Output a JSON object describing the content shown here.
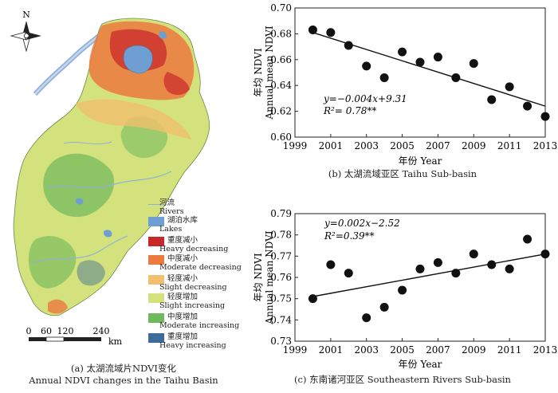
{
  "map": {
    "north_label": "N",
    "caption_cn": "(a) 太湖流域片NDVI变化",
    "caption_en": "Annual NDVI changes in the Taihu Basin",
    "scalebar": {
      "ticks": [
        "0",
        "60",
        "120",
        "240"
      ],
      "unit": "km"
    },
    "legend": [
      {
        "cn": "河流",
        "en": "Rivers",
        "color": "#8fb0d8"
      },
      {
        "cn": "湖泊水库",
        "en": "Lakes",
        "color": "#6f9fd2"
      },
      {
        "cn": "重度减小",
        "en": "Heavy decreasing",
        "color": "#c8282a"
      },
      {
        "cn": "中度减小",
        "en": "Moderate decreasing",
        "color": "#ec7940"
      },
      {
        "cn": "轻度减小",
        "en": "Slight decreasing",
        "color": "#f1bf6e"
      },
      {
        "cn": "轻度增加",
        "en": "Slight increasing",
        "color": "#d3e27c"
      },
      {
        "cn": "中度增加",
        "en": "Moderate increasing",
        "color": "#6fb85c"
      },
      {
        "cn": "重度增加",
        "en": "Heavy increasing",
        "color": "#3c6b9a"
      }
    ]
  },
  "chart_data": [
    {
      "type": "scatter",
      "caption": "(b) 太湖流域亚区 Taihu Sub-basin",
      "xlabel": "年份 Year",
      "ylabel_cn": "年均 NDVI",
      "ylabel_en": "Annual mean NDVI",
      "xlim": [
        1999,
        2013
      ],
      "ylim": [
        0.6,
        0.7
      ],
      "xticks": [
        "1999",
        "2001",
        "2003",
        "2005",
        "2007",
        "2009",
        "2011",
        "2013"
      ],
      "yticks": [
        "0.60",
        "0.62",
        "0.64",
        "0.66",
        "0.68",
        "0.70"
      ],
      "x": [
        2000,
        2001,
        2002,
        2003,
        2004,
        2005,
        2006,
        2007,
        2008,
        2009,
        2010,
        2011,
        2012,
        2013
      ],
      "y": [
        0.683,
        0.681,
        0.671,
        0.655,
        0.646,
        0.666,
        0.658,
        0.662,
        0.646,
        0.657,
        0.629,
        0.639,
        0.624,
        0.616
      ],
      "fit": {
        "x": [
          2000,
          2013
        ],
        "y": [
          0.681,
          0.624
        ]
      },
      "equation": "y=−0.004x+9.31",
      "r2": "R²= 0.78**"
    },
    {
      "type": "scatter",
      "caption": "(c) 东南诸河亚区 Southeastern Rivers Sub-basin",
      "xlabel": "年份 Year",
      "ylabel_cn": "年均 NDVI",
      "ylabel_en": "Annual mean NDVI",
      "xlim": [
        1999,
        2013
      ],
      "ylim": [
        0.73,
        0.79
      ],
      "xticks": [
        "1999",
        "2001",
        "2003",
        "2005",
        "2007",
        "2009",
        "2011",
        "2013"
      ],
      "yticks": [
        "0.73",
        "0.74",
        "0.75",
        "0.76",
        "0.77",
        "0.78",
        "0.79"
      ],
      "x": [
        2000,
        2001,
        2002,
        2003,
        2004,
        2005,
        2006,
        2007,
        2008,
        2009,
        2010,
        2011,
        2012,
        2013
      ],
      "y": [
        0.75,
        0.766,
        0.762,
        0.741,
        0.746,
        0.754,
        0.764,
        0.767,
        0.762,
        0.771,
        0.766,
        0.764,
        0.778,
        0.771
      ],
      "fit": {
        "x": [
          2000,
          2013
        ],
        "y": [
          0.751,
          0.771
        ]
      },
      "equation": "y=0.002x−2.52",
      "r2": "R²=0.39**"
    }
  ]
}
